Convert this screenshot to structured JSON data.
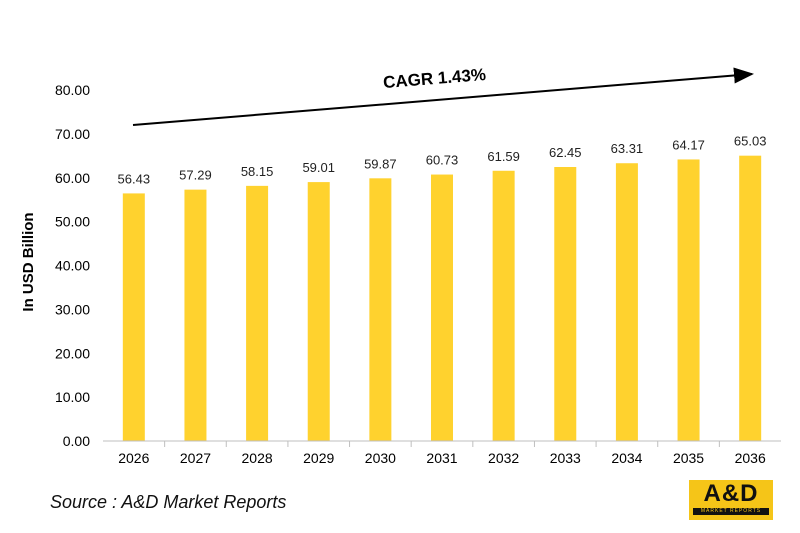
{
  "chart_data": {
    "type": "bar",
    "categories": [
      "2026",
      "2027",
      "2028",
      "2029",
      "2030",
      "2031",
      "2032",
      "2033",
      "2034",
      "2035",
      "2036"
    ],
    "values": [
      56.43,
      57.29,
      58.15,
      59.01,
      59.87,
      60.73,
      61.59,
      62.45,
      63.31,
      64.17,
      65.03
    ],
    "data_labels": [
      "56.43",
      "57.29",
      "58.15",
      "59.01",
      "59.87",
      "60.73",
      "61.59",
      "62.45",
      "63.31",
      "64.17",
      "65.03"
    ],
    "title": "",
    "xlabel": "",
    "ylabel": "In USD Billion",
    "ylim": [
      0,
      80
    ],
    "yticks": [
      "0.00",
      "10.00",
      "20.00",
      "30.00",
      "40.00",
      "50.00",
      "60.00",
      "70.00",
      "80.00"
    ],
    "annotation": "CAGR 1.43%",
    "bar_color": "#ffd22e",
    "grid": false,
    "legend": "none"
  },
  "source": "Source : A&D Market Reports",
  "logo": {
    "mark": "A&D",
    "subtitle": "MARKET REPORTS",
    "color": "#f5c518"
  }
}
